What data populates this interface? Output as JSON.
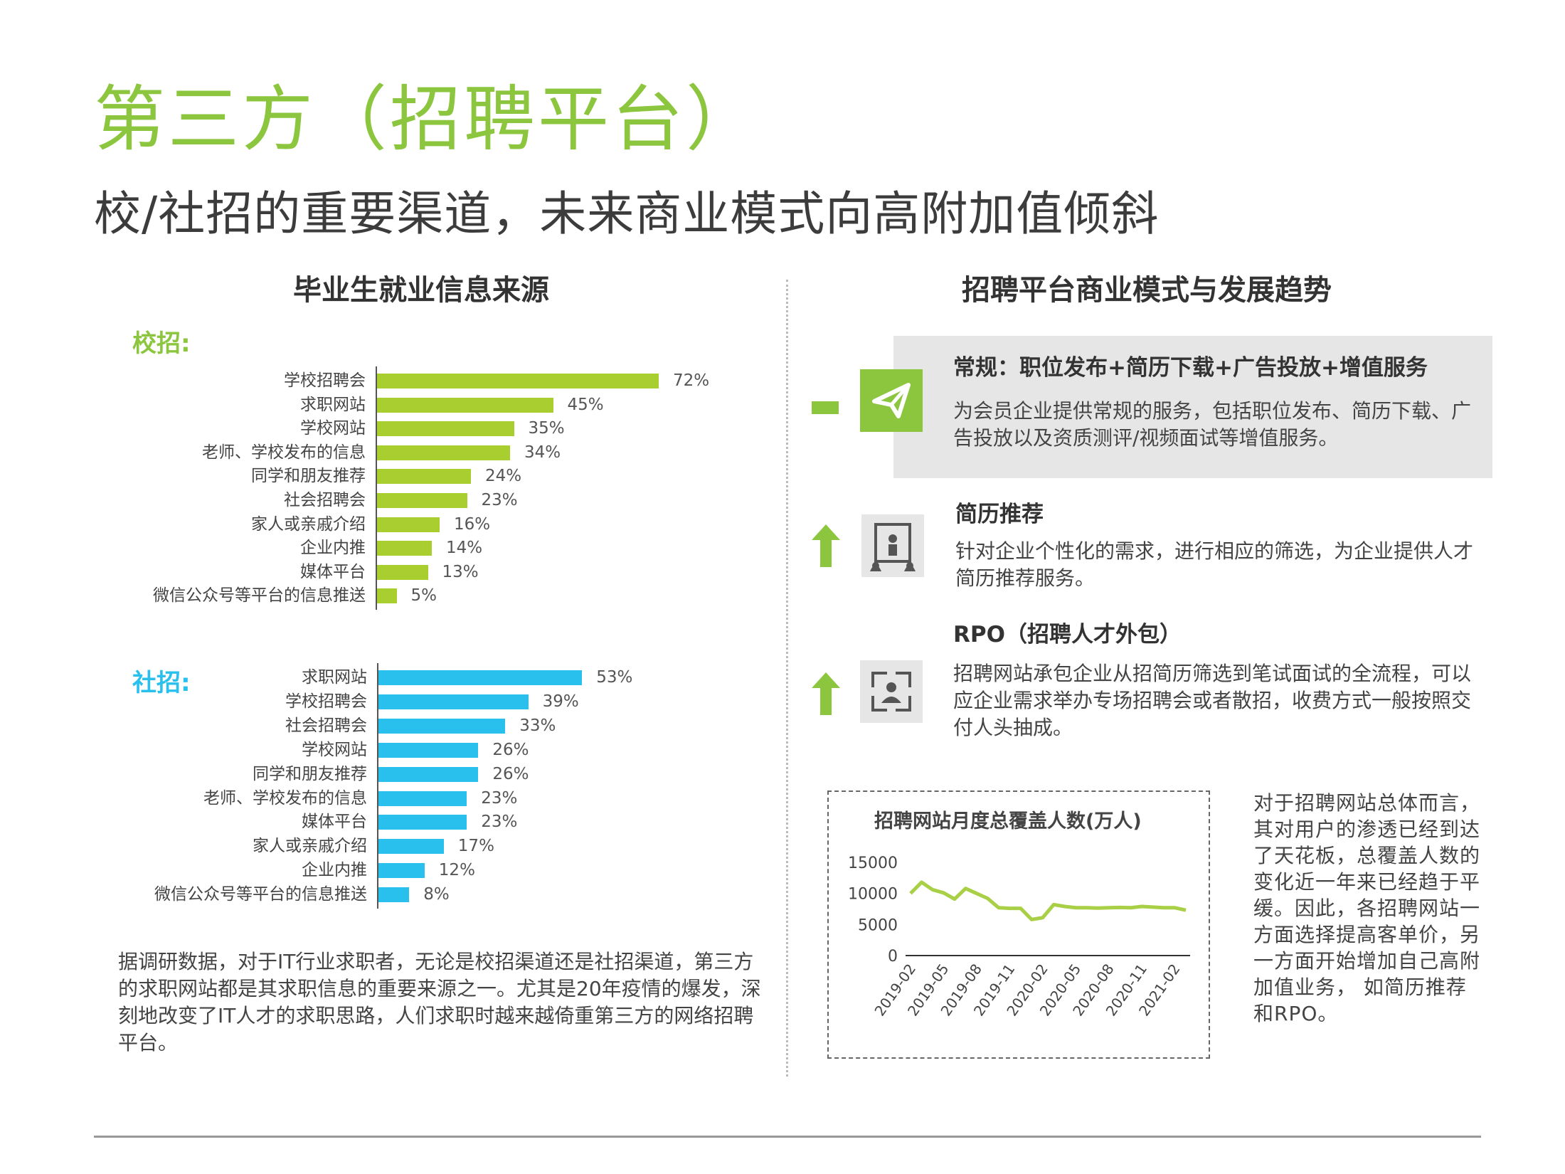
{
  "header": {
    "title": "第三方（招聘平台）",
    "subtitle": "校/社招的重要渠道，未来商业模式向高附加值倾斜"
  },
  "left": {
    "section_title": "毕业生就业信息来源",
    "school_label": "校招:",
    "social_label": "社招:",
    "paragraph": "据调研数据，对于IT行业求职者，无论是校招渠道还是社招渠道，第三方的求职网站都是其求职信息的重要来源之一。尤其是20年疫情的爆发，深刻地改变了IT人才的求职思路，人们求职时越来越倚重第三方的网络招聘平台。"
  },
  "right": {
    "section_title": "招聘平台商业模式与发展趋势",
    "items": [
      {
        "title": "常规：职位发布+简历下载+广告投放+增值服务",
        "body": "为会员企业提供常规的服务，包括职位发布、简历下载、广告投放以及资质测评/视频面试等增值服务。",
        "trend": "flat",
        "icon": "paper-plane-icon"
      },
      {
        "title": "简历推荐",
        "body": "针对企业个性化的需求，进行相应的筛选，为企业提供人才简历推荐服务。",
        "trend": "up",
        "icon": "candidate-recommend-icon"
      },
      {
        "title": "RPO（招聘人才外包）",
        "body": "招聘网站承包企业从招简历筛选到笔试面试的全流程，可以应企业需求举办专场招聘会或者散招，收费方式一般按照交付人头抽成。",
        "trend": "up",
        "icon": "person-frame-icon"
      }
    ],
    "side_text": "对于招聘网站总体而言，其对用户的渗透已经到达了天花板，总覆盖人数的变化近一年来已经趋于平缓。因此，各招聘网站一方面选择提高客单价，另一方面开始增加自己高附加值业务， 如简历推荐和RPO。"
  },
  "colors": {
    "green": "#8cc63f",
    "blue": "#29c0ee",
    "line": "#a8cf45",
    "panel": "#e6e6e6"
  },
  "chart_data": [
    {
      "type": "bar",
      "orientation": "horizontal",
      "group": "校招:",
      "categories": [
        "学校招聘会",
        "求职网站",
        "学校网站",
        "老师、学校发布的信息",
        "同学和朋友推荐",
        "社会招聘会",
        "家人或亲戚介绍",
        "企业内推",
        "媒体平台",
        "微信公众号等平台的信息推送"
      ],
      "values": [
        72,
        45,
        35,
        34,
        24,
        23,
        16,
        14,
        13,
        5
      ],
      "labels": [
        "72%",
        "45%",
        "35%",
        "34%",
        "24%",
        "23%",
        "16%",
        "14%",
        "13%",
        "5%"
      ],
      "unit": "%",
      "color": "#a8cf2f"
    },
    {
      "type": "bar",
      "orientation": "horizontal",
      "group": "社招:",
      "categories": [
        "求职网站",
        "学校招聘会",
        "社会招聘会",
        "学校网站",
        "同学和朋友推荐",
        "老师、学校发布的信息",
        "媒体平台",
        "家人或亲戚介绍",
        "企业内推",
        "微信公众号等平台的信息推送"
      ],
      "values": [
        53,
        39,
        33,
        26,
        26,
        23,
        23,
        17,
        12,
        8
      ],
      "labels": [
        "53%",
        "39%",
        "33%",
        "26%",
        "26%",
        "23%",
        "23%",
        "17%",
        "12%",
        "8%"
      ],
      "unit": "%",
      "color": "#29c0ee"
    },
    {
      "type": "line",
      "title": "招聘网站月度总覆盖人数(万人)",
      "x": [
        "2019-02",
        "2019-03",
        "2019-04",
        "2019-05",
        "2019-06",
        "2019-07",
        "2019-08",
        "2019-09",
        "2019-10",
        "2019-11",
        "2019-12",
        "2020-01",
        "2020-02",
        "2020-03",
        "2020-04",
        "2020-05",
        "2020-06",
        "2020-07",
        "2020-08",
        "2020-09",
        "2020-10",
        "2020-11",
        "2020-12",
        "2021-01",
        "2021-02",
        "2021-03"
      ],
      "x_tick_labels": [
        "2019-02",
        "2019-05",
        "2019-08",
        "2019-11",
        "2020-02",
        "2020-05",
        "2020-08",
        "2020-11",
        "2021-02"
      ],
      "y": [
        10000,
        11800,
        10600,
        10100,
        9100,
        10800,
        10000,
        9200,
        7700,
        7600,
        7600,
        5800,
        6100,
        8200,
        7900,
        7700,
        7700,
        7650,
        7700,
        7750,
        7700,
        7900,
        7800,
        7700,
        7700,
        7300
      ],
      "yticks": [
        0,
        5000,
        10000,
        15000
      ],
      "ylim": [
        0,
        15000
      ],
      "grid": false
    }
  ]
}
